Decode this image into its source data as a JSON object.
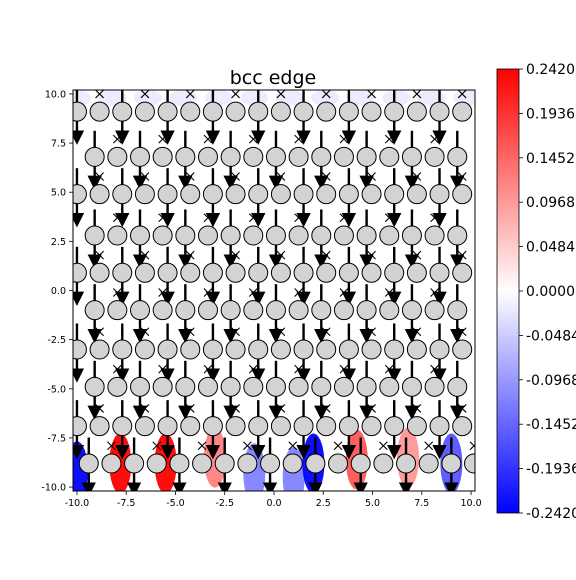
{
  "chart_data": {
    "type": "heatmap",
    "title": "bcc edge",
    "xlabel": "",
    "ylabel": "",
    "xlim": [
      -10.2,
      10.2
    ],
    "ylim": [
      -10.2,
      10.2
    ],
    "x_ticks": [
      "-10.0",
      "-7.5",
      "-5.0",
      "-2.5",
      "0.0",
      "2.5",
      "5.0",
      "7.5",
      "10.0"
    ],
    "y_ticks": [
      "10.0",
      "7.5",
      "5.0",
      "2.5",
      "0.0",
      "-2.5",
      "-5.0",
      "-7.5",
      "-10.0"
    ],
    "colorbar": {
      "colormap": "bwr",
      "min": -0.242,
      "max": 0.242,
      "tick_labels": [
        "0.2420",
        "0.1936",
        "0.1452",
        "0.0968",
        "0.0484",
        "0.0000",
        "-0.0484",
        "-0.0968",
        "-0.1452",
        "-0.1936",
        "-0.2420"
      ]
    },
    "atom_rows_y": [
      9.1,
      6.8,
      4.9,
      2.8,
      0.9,
      -1.0,
      -3.0,
      -4.9,
      -6.9,
      -8.8
    ],
    "atom_rows_x_start": [
      -10.0,
      -9.1,
      -10.0,
      -9.1,
      -10.0,
      -9.1,
      -10.0,
      -9.1,
      -10.0,
      -9.4
    ],
    "atom_spacing": 1.15,
    "field_hotspots": [
      {
        "x": -10.0,
        "y": -9.2,
        "value": -0.242
      },
      {
        "x": -7.8,
        "y": -8.8,
        "value": 0.242
      },
      {
        "x": -5.5,
        "y": -8.8,
        "value": 0.242
      },
      {
        "x": -3.0,
        "y": -8.5,
        "value": 0.12
      },
      {
        "x": -1.0,
        "y": -9.3,
        "value": -0.12
      },
      {
        "x": 1.0,
        "y": -9.5,
        "value": -0.12
      },
      {
        "x": 2.0,
        "y": -8.8,
        "value": -0.242
      },
      {
        "x": 4.2,
        "y": -8.6,
        "value": 0.16
      },
      {
        "x": 6.8,
        "y": -8.5,
        "value": 0.1
      },
      {
        "x": 9.0,
        "y": -8.8,
        "value": -0.16
      }
    ],
    "colors": {
      "positive": "#ff0000",
      "negative": "#0000ff",
      "zero": "#ffffff",
      "atom_fill": "#d3d3d3"
    }
  }
}
